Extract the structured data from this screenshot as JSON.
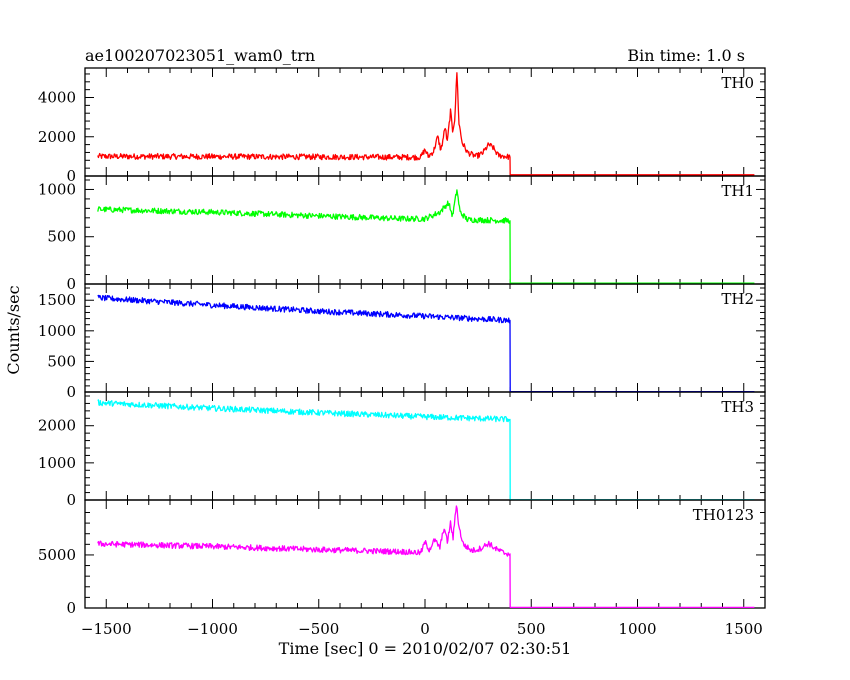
{
  "header": {
    "title": "ae100207023051_wam0_trn",
    "bin_time": "Bin time: 1.0 s"
  },
  "axes": {
    "xlabel": "Time [sec] 0 = 2010/02/07 02:30:51",
    "ylabel": "Counts/sec"
  },
  "chart_data": {
    "type": "line",
    "title": "ae100207023051_wam0_trn",
    "xlabel": "Time [sec] 0 = 2010/02/07 02:30:51",
    "ylabel": "Counts/sec",
    "xlim": [
      -1600,
      1600
    ],
    "x_ticks": [
      -1500,
      -1000,
      -500,
      0,
      500,
      1000,
      1500
    ],
    "x_tick_labels": [
      "−1500",
      "−1000",
      "−500",
      "0",
      "500",
      "1000",
      "1500"
    ],
    "legend": "none",
    "grid": false,
    "panels": [
      {
        "name": "TH0",
        "color": "#ff0000",
        "ylim": [
          0,
          5300
        ],
        "y_ticks": [
          0,
          2000,
          4000
        ],
        "y_tick_labels": [
          "0",
          "2000",
          "4000"
        ],
        "points": [
          [
            -1540,
            1000
          ],
          [
            -1000,
            990
          ],
          [
            -500,
            975
          ],
          [
            -100,
            960
          ],
          [
            -20,
            960
          ],
          [
            0,
            1350
          ],
          [
            15,
            1000
          ],
          [
            40,
            1250
          ],
          [
            60,
            2000
          ],
          [
            75,
            1300
          ],
          [
            95,
            2500
          ],
          [
            105,
            1700
          ],
          [
            120,
            3300
          ],
          [
            130,
            2300
          ],
          [
            140,
            2900
          ],
          [
            150,
            5300
          ],
          [
            160,
            2700
          ],
          [
            175,
            1700
          ],
          [
            200,
            1200
          ],
          [
            240,
            1000
          ],
          [
            270,
            1150
          ],
          [
            300,
            1600
          ],
          [
            320,
            1450
          ],
          [
            345,
            1050
          ],
          [
            380,
            1000
          ],
          [
            400,
            960
          ],
          [
            401,
            60
          ],
          [
            1550,
            60
          ]
        ]
      },
      {
        "name": "TH1",
        "color": "#00ff00",
        "ylim": [
          0,
          1100
        ],
        "y_ticks": [
          0,
          500,
          1000
        ],
        "y_tick_labels": [
          "0",
          "500",
          "1000"
        ],
        "points": [
          [
            -1540,
            790
          ],
          [
            -1000,
            760
          ],
          [
            -500,
            720
          ],
          [
            -100,
            690
          ],
          [
            0,
            690
          ],
          [
            70,
            760
          ],
          [
            110,
            860
          ],
          [
            130,
            720
          ],
          [
            150,
            1000
          ],
          [
            165,
            760
          ],
          [
            200,
            680
          ],
          [
            300,
            675
          ],
          [
            400,
            670
          ],
          [
            401,
            10
          ],
          [
            1550,
            10
          ]
        ]
      },
      {
        "name": "TH2",
        "color": "#0000ff",
        "ylim": [
          0,
          1700
        ],
        "y_ticks": [
          0,
          500,
          1000,
          1500
        ],
        "y_tick_labels": [
          "0",
          "500",
          "1000",
          "1500"
        ],
        "points": [
          [
            -1540,
            1540
          ],
          [
            -1000,
            1420
          ],
          [
            -500,
            1320
          ],
          [
            0,
            1240
          ],
          [
            400,
            1170
          ],
          [
            401,
            5
          ],
          [
            1550,
            5
          ]
        ]
      },
      {
        "name": "TH3",
        "color": "#00ffff",
        "ylim": [
          0,
          2800
        ],
        "y_ticks": [
          0,
          1000,
          2000
        ],
        "y_tick_labels": [
          "0",
          "1000",
          "2000"
        ],
        "points": [
          [
            -1540,
            2620
          ],
          [
            -1000,
            2470
          ],
          [
            -500,
            2350
          ],
          [
            0,
            2240
          ],
          [
            400,
            2170
          ],
          [
            401,
            5
          ],
          [
            1550,
            5
          ]
        ]
      },
      {
        "name": "TH0123",
        "color": "#ff00ff",
        "ylim": [
          0,
          9800
        ],
        "y_ticks": [
          0,
          5000
        ],
        "y_tick_labels": [
          "0",
          "5000"
        ],
        "points": [
          [
            -1540,
            6050
          ],
          [
            -1000,
            5800
          ],
          [
            -500,
            5500
          ],
          [
            -100,
            5300
          ],
          [
            -20,
            5200
          ],
          [
            0,
            6200
          ],
          [
            20,
            5500
          ],
          [
            45,
            6400
          ],
          [
            70,
            5700
          ],
          [
            90,
            7600
          ],
          [
            105,
            6200
          ],
          [
            120,
            8000
          ],
          [
            132,
            6600
          ],
          [
            148,
            9800
          ],
          [
            160,
            7600
          ],
          [
            180,
            6000
          ],
          [
            220,
            5400
          ],
          [
            260,
            5600
          ],
          [
            300,
            6100
          ],
          [
            330,
            5600
          ],
          [
            370,
            5200
          ],
          [
            400,
            5100
          ],
          [
            401,
            60
          ],
          [
            1550,
            60
          ]
        ]
      }
    ]
  }
}
